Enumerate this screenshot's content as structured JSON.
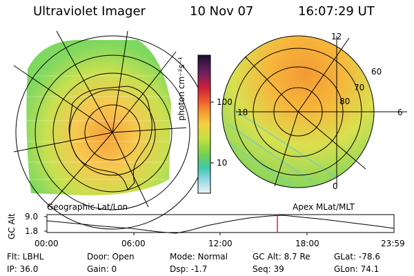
{
  "header": {
    "instrument": "Ultraviolet Imager",
    "date": "10 Nov 07",
    "time": "16:07:29 UT"
  },
  "colorbar": {
    "label": "photon cm⁻²s⁻¹",
    "tick_100": "100",
    "tick_10": "10"
  },
  "left_map": {
    "caption": "Geographic Lat/Lon"
  },
  "right_map": {
    "caption": "Apex MLat/MLT",
    "labels": {
      "mlt_12": "12",
      "mlt_18": "18",
      "mlt_6": "6",
      "mlt_0": "0",
      "lat_60": "60",
      "lat_70": "70",
      "lat_80": "80"
    }
  },
  "altitude_strip": {
    "axis_title": "GC Alt",
    "y_max": "9.0",
    "y_min": "1.8",
    "x_ticks": [
      "00:00",
      "06:00",
      "12:00",
      "18:00",
      "23:59"
    ]
  },
  "status": {
    "flt": "Flt: LBHL",
    "ip": "IP: 36.0",
    "door": "Door: Open",
    "gain": "Gain:  0",
    "mode": "Mode: Normal",
    "dsp": "Dsp:   -1.7",
    "gcalt": "GC Alt: 8.7 Re",
    "seq": "Seq: 39",
    "glat": "GLat: -78.6",
    "glon": "GLon: 74.1"
  }
}
